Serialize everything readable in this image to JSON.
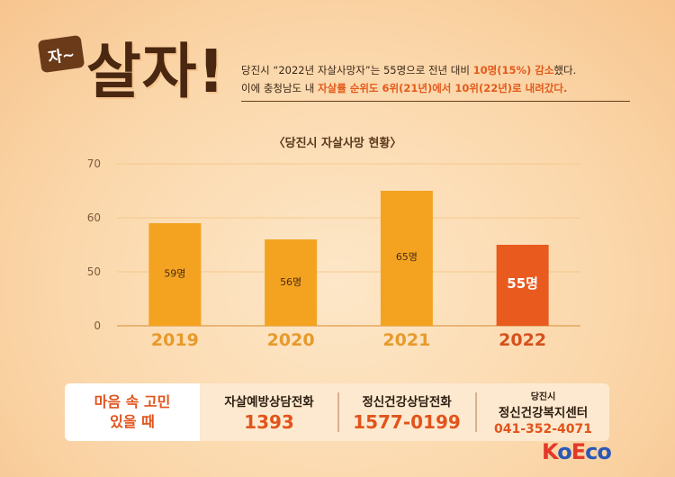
{
  "header": {
    "tag": "자~",
    "headline": "살자!",
    "line1_pre": "당진시 “2022년 자살사망자”는 55명으로 전년 대비 ",
    "line1_hl": "10명(15%) 감소",
    "line1_post": "했다.",
    "line2_pre": "이에 충청남도 내 ",
    "line2_hl": "자살률 순위도 6위(21년)에서 10위(22년)로 내려갔다."
  },
  "chart_data": {
    "type": "bar",
    "title": "〈당진시 자살사망 현황〉",
    "categories": [
      "2019",
      "2020",
      "2021",
      "2022"
    ],
    "values": [
      59,
      56,
      65,
      55
    ],
    "value_labels": [
      "59명",
      "56명",
      "65명",
      "55명"
    ],
    "yticks": [
      "0",
      "50",
      "60",
      "70"
    ],
    "axis_note": "broken y-axis: 0 at baseline, 50–70 linear above",
    "colors": {
      "bar": "#f4a321",
      "highlight": "#e95a1e",
      "label_dark": "#4a2b10",
      "label_light": "#ffffff"
    },
    "highlight_index": 3,
    "grid": true
  },
  "footer": {
    "left_line1": "마음 속 고민",
    "left_line2": "있을 때",
    "col1_title": "자살예방상담전화",
    "col1_number": "1393",
    "col2_title": "정신건강상담전화",
    "col2_number": "1577-0199",
    "col3_small": "당진시",
    "col3_title": "정신건강복지센터",
    "col3_number": "041-352-4071"
  },
  "logo": {
    "k": "K",
    "o": "o",
    "e": "E",
    "co": "co"
  }
}
